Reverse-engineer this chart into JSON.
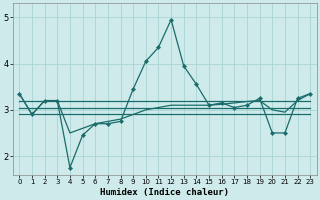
{
  "xlabel": "Humidex (Indice chaleur)",
  "bg_color": "#ceeaea",
  "grid_color": "#aad4d4",
  "line_color": "#1a6b6b",
  "xlim": [
    -0.5,
    23.5
  ],
  "ylim": [
    1.6,
    5.3
  ],
  "yticks": [
    2,
    3,
    4,
    5
  ],
  "xticks": [
    0,
    1,
    2,
    3,
    4,
    5,
    6,
    7,
    8,
    9,
    10,
    11,
    12,
    13,
    14,
    15,
    16,
    17,
    18,
    19,
    20,
    21,
    22,
    23
  ],
  "series_main": {
    "x": [
      0,
      1,
      2,
      3,
      4,
      5,
      6,
      7,
      8,
      9,
      10,
      11,
      12,
      13,
      14,
      15,
      16,
      17,
      18,
      19,
      20,
      21,
      22,
      23
    ],
    "y": [
      3.35,
      2.9,
      3.2,
      3.2,
      1.75,
      2.45,
      2.7,
      2.7,
      2.75,
      3.45,
      4.05,
      4.35,
      4.95,
      3.95,
      3.55,
      3.1,
      3.15,
      3.05,
      3.1,
      3.25,
      2.5,
      2.5,
      3.25,
      3.35
    ]
  },
  "series_flat": [
    {
      "x": [
        0,
        23
      ],
      "y": [
        3.2,
        3.2
      ]
    },
    {
      "x": [
        0,
        23
      ],
      "y": [
        3.05,
        3.05
      ]
    },
    {
      "x": [
        0,
        23
      ],
      "y": [
        2.9,
        2.9
      ]
    }
  ],
  "series_smooth": {
    "x": [
      0,
      1,
      2,
      3,
      4,
      5,
      6,
      7,
      8,
      9,
      10,
      11,
      12,
      13,
      14,
      15,
      16,
      17,
      18,
      19,
      20,
      21,
      22,
      23
    ],
    "y": [
      3.35,
      2.9,
      3.2,
      3.2,
      2.5,
      2.6,
      2.7,
      2.75,
      2.8,
      2.9,
      3.0,
      3.05,
      3.1,
      3.1,
      3.1,
      3.1,
      3.12,
      3.15,
      3.18,
      3.2,
      3.0,
      2.95,
      3.2,
      3.35
    ]
  }
}
